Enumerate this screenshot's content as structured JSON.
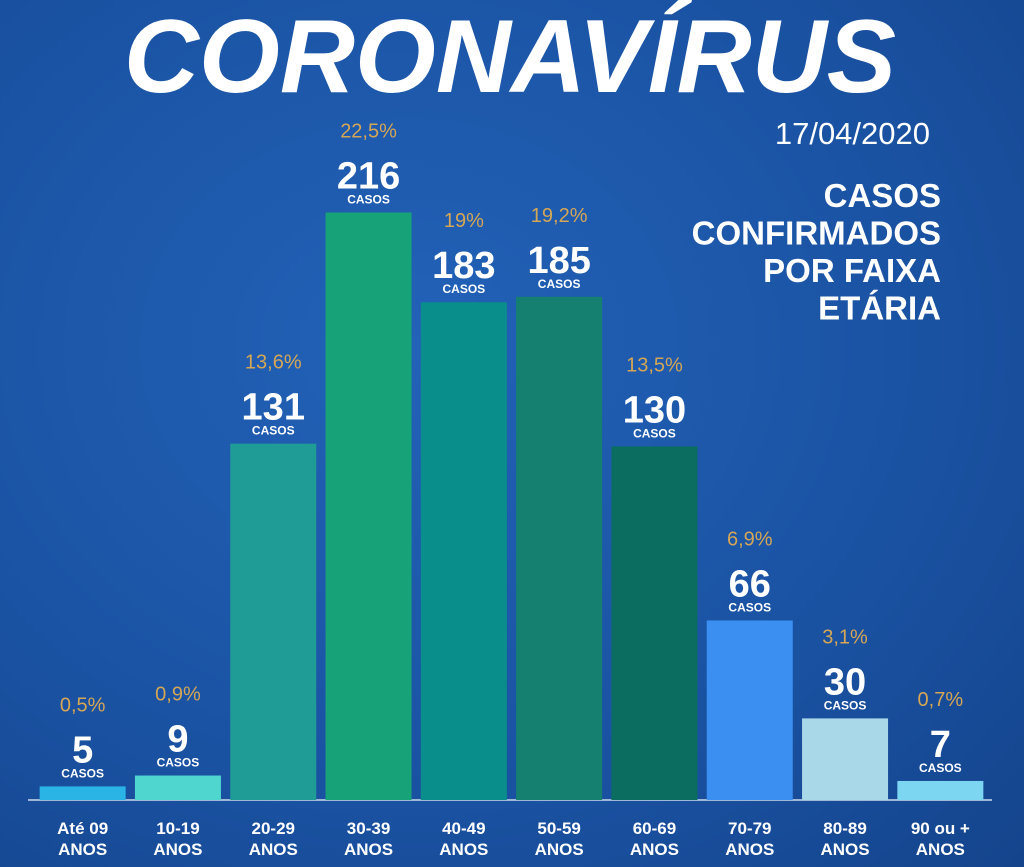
{
  "chart_data": {
    "type": "bar",
    "title": "CORONAVÍRUS",
    "date": "17/04/2020",
    "subtitle_lines": [
      "CASOS",
      "CONFIRMADOS",
      "POR FAIXA",
      "ETÁRIA"
    ],
    "unit_label": "CASOS",
    "categories": [
      "Até 09 ANOS",
      "10-19 ANOS",
      "20-29 ANOS",
      "30-39 ANOS",
      "40-49 ANOS",
      "50-59 ANOS",
      "60-69 ANOS",
      "70-79 ANOS",
      "80-89 ANOS",
      "90 ou + ANOS"
    ],
    "values": [
      5,
      9,
      131,
      216,
      183,
      185,
      130,
      66,
      30,
      7
    ],
    "colors": [
      "#2ab4e6",
      "#4fd6cf",
      "#1f9c96",
      "#18a278",
      "#0a8e8b",
      "#15806f",
      "#0b6d5f",
      "#3b8ff0",
      "#a9d8e9",
      "#7dd6f1"
    ],
    "percentages": {
      "values": [
        0.5,
        0.9,
        13.6,
        22.5,
        19,
        19.2,
        13.5,
        6.9,
        3.1,
        0.7
      ],
      "value_labels": [
        "0,5%",
        "0,9%",
        "13,6%",
        "22,5%",
        "19%",
        "19,2%",
        "13,5%",
        "6,9%",
        "3,1%",
        "0,7%"
      ]
    }
  }
}
